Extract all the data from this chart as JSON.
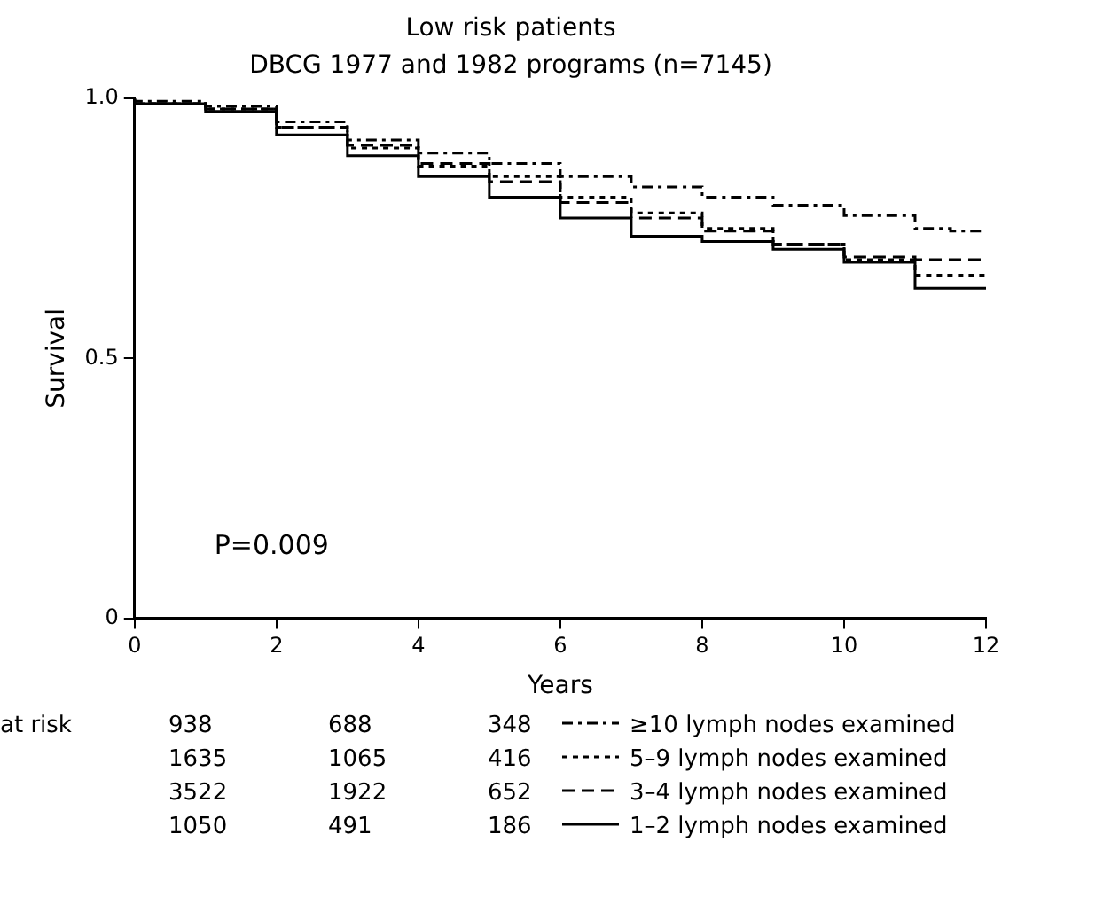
{
  "chart_data": {
    "type": "step",
    "title": "Low risk patients",
    "subtitle": "DBCG 1977 and 1982 programs (n=7145)",
    "xlabel": "Years",
    "ylabel": "Survival",
    "x": [
      0,
      1,
      2,
      3,
      4,
      5,
      6,
      7,
      8,
      9,
      10,
      11,
      11.5,
      12
    ],
    "xlim": [
      0,
      12
    ],
    "xticks": [
      0,
      2,
      4,
      6,
      8,
      10,
      12
    ],
    "ylim": [
      0,
      1
    ],
    "yticks": [
      0,
      0.5,
      {
        "value": 1,
        "label": "1.0"
      }
    ],
    "grid": false,
    "legend": "bottom",
    "series": [
      {
        "name": "≥10 lymph nodes examined",
        "color": "#000000",
        "line_style": "dashed",
        "values": [
          1.0,
          0.995,
          0.985,
          0.955,
          0.92,
          0.895,
          0.875,
          0.85,
          0.83,
          0.81,
          0.795,
          0.775,
          0.75,
          0.745
        ]
      },
      {
        "name": "5–9 lymph nodes examined",
        "color": "#000000",
        "line_style": "dashed",
        "values": [
          1.0,
          0.99,
          0.98,
          0.945,
          0.905,
          0.87,
          0.85,
          0.81,
          0.78,
          0.75,
          0.72,
          0.69,
          0.66,
          0.66
        ]
      },
      {
        "name": "3–4 lymph nodes examined",
        "color": "#000000",
        "line_style": "dashed",
        "values": [
          1.0,
          0.99,
          0.98,
          0.945,
          0.91,
          0.875,
          0.84,
          0.8,
          0.77,
          0.745,
          0.72,
          0.695,
          0.69,
          0.69
        ]
      },
      {
        "name": "1–2 lymph nodes examined",
        "color": "#000000",
        "line_style": "solid",
        "values": [
          1.0,
          0.99,
          0.975,
          0.93,
          0.89,
          0.85,
          0.81,
          0.77,
          0.735,
          0.725,
          0.71,
          0.685,
          0.635,
          0.635
        ]
      }
    ],
    "annotations": [
      "P=0.009",
      "at risk",
      "938",
      "688",
      "348",
      "1635",
      "1065",
      "416",
      "3522",
      "1922",
      "652",
      "1050",
      "491",
      "186"
    ]
  }
}
